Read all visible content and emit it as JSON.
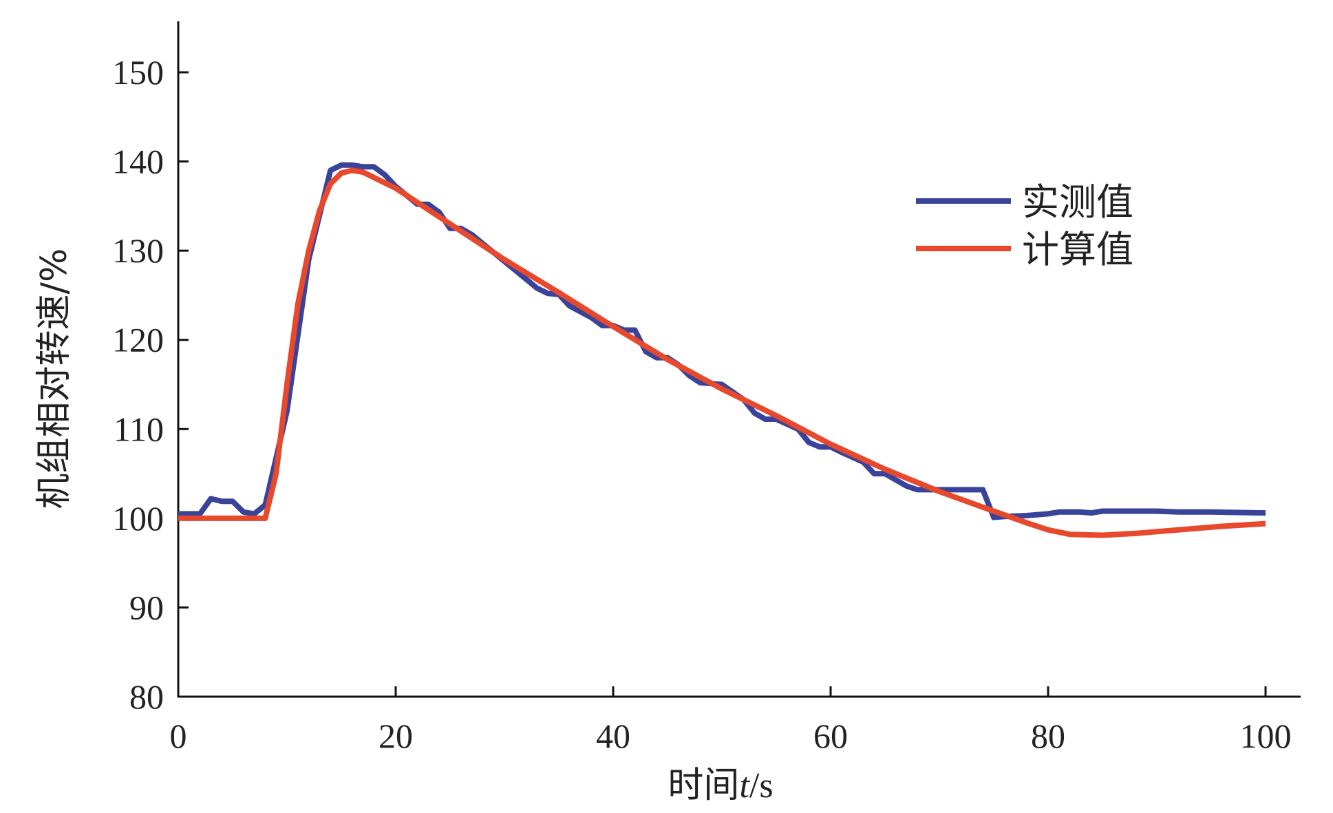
{
  "chart_data": {
    "type": "line",
    "title": "",
    "xlabel_prefix": "时间",
    "xlabel_var": "t",
    "xlabel_unit": "/s",
    "ylabel": "机组相对转速/%",
    "xlim": [
      0,
      100
    ],
    "ylim": [
      80,
      155
    ],
    "xticks": [
      "0",
      "20",
      "40",
      "60",
      "80",
      "100"
    ],
    "yticks": [
      "80",
      "90",
      "100",
      "110",
      "120",
      "130",
      "140",
      "150"
    ],
    "grid": false,
    "legend_position": "top-right",
    "series": [
      {
        "name": "实测值",
        "color": "#39439a",
        "points": [
          [
            0,
            100.5
          ],
          [
            2,
            100.5
          ],
          [
            3,
            102.2
          ],
          [
            4,
            101.9
          ],
          [
            5,
            101.9
          ],
          [
            6,
            100.7
          ],
          [
            7,
            100.5
          ],
          [
            8,
            101.5
          ],
          [
            10,
            112
          ],
          [
            12,
            129
          ],
          [
            13,
            134
          ],
          [
            14,
            139
          ],
          [
            15,
            139.6
          ],
          [
            16,
            139.6
          ],
          [
            17,
            139.4
          ],
          [
            18,
            139.4
          ],
          [
            19,
            138.5
          ],
          [
            20,
            137.2
          ],
          [
            22,
            135.2
          ],
          [
            23,
            135.2
          ],
          [
            24,
            134.3
          ],
          [
            25,
            132.5
          ],
          [
            26,
            132.5
          ],
          [
            27,
            131.8
          ],
          [
            30,
            128.8
          ],
          [
            33,
            125.8
          ],
          [
            34,
            125.2
          ],
          [
            35,
            125.1
          ],
          [
            36,
            123.8
          ],
          [
            38,
            122.5
          ],
          [
            39,
            121.6
          ],
          [
            40,
            121.6
          ],
          [
            41,
            121.1
          ],
          [
            42,
            121.1
          ],
          [
            43,
            118.7
          ],
          [
            44,
            118
          ],
          [
            45,
            118
          ],
          [
            46,
            117.2
          ],
          [
            47,
            116
          ],
          [
            48,
            115.2
          ],
          [
            50,
            115
          ],
          [
            52,
            113.3
          ],
          [
            53,
            111.8
          ],
          [
            54,
            111.1
          ],
          [
            55,
            111.1
          ],
          [
            57,
            110
          ],
          [
            58,
            108.5
          ],
          [
            59,
            108
          ],
          [
            60,
            108
          ],
          [
            61,
            107.4
          ],
          [
            63,
            106.3
          ],
          [
            64,
            105
          ],
          [
            65,
            105
          ],
          [
            67,
            103.6
          ],
          [
            68,
            103.2
          ],
          [
            70,
            103.2
          ],
          [
            74,
            103.2
          ],
          [
            75,
            100.1
          ],
          [
            76,
            100.2
          ],
          [
            78,
            100.3
          ],
          [
            80,
            100.5
          ],
          [
            81,
            100.7
          ],
          [
            83,
            100.7
          ],
          [
            84,
            100.6
          ],
          [
            85,
            100.8
          ],
          [
            90,
            100.8
          ],
          [
            92,
            100.7
          ],
          [
            95,
            100.7
          ],
          [
            100,
            100.6
          ]
        ]
      },
      {
        "name": "计算值",
        "color": "#e8482b",
        "points": [
          [
            0,
            100
          ],
          [
            8,
            100
          ],
          [
            9,
            105
          ],
          [
            10,
            115
          ],
          [
            11,
            124
          ],
          [
            12,
            130
          ],
          [
            13,
            134.5
          ],
          [
            14,
            137.5
          ],
          [
            15,
            138.7
          ],
          [
            16,
            139
          ],
          [
            17,
            138.8
          ],
          [
            20,
            137
          ],
          [
            25,
            133
          ],
          [
            30,
            129
          ],
          [
            35,
            125.3
          ],
          [
            40,
            121.5
          ],
          [
            45,
            117.8
          ],
          [
            50,
            114.5
          ],
          [
            55,
            111.5
          ],
          [
            60,
            108.3
          ],
          [
            65,
            105.5
          ],
          [
            70,
            103
          ],
          [
            75,
            100.8
          ],
          [
            78,
            99.5
          ],
          [
            80,
            98.7
          ],
          [
            82,
            98.2
          ],
          [
            85,
            98.1
          ],
          [
            88,
            98.3
          ],
          [
            92,
            98.7
          ],
          [
            96,
            99.1
          ],
          [
            100,
            99.4
          ]
        ]
      }
    ]
  }
}
